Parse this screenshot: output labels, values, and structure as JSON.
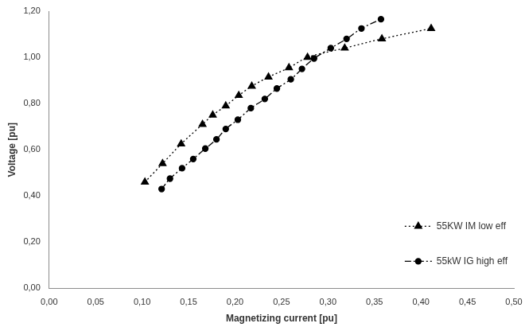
{
  "chart_data": {
    "type": "line",
    "x_label": "Magnetizing current [pu]",
    "y_label": "Voltage [pu]",
    "xlim": [
      0,
      0.5
    ],
    "xticks": [
      {
        "value": 0,
        "label": "0,00"
      },
      {
        "value": 0.05,
        "label": "0,05"
      },
      {
        "value": 0.1,
        "label": "0,10"
      },
      {
        "value": 0.15,
        "label": "0,15"
      },
      {
        "value": 0.2,
        "label": "0,20"
      },
      {
        "value": 0.25,
        "label": "0,25"
      },
      {
        "value": 0.3,
        "label": "0,30"
      },
      {
        "value": 0.35,
        "label": "0,35"
      },
      {
        "value": 0.4,
        "label": "0,40"
      },
      {
        "value": 0.45,
        "label": "0,45"
      },
      {
        "value": 0.5,
        "label": "0,50"
      }
    ],
    "ylim": [
      0,
      1.2
    ],
    "yticks": [
      {
        "value": 0,
        "label": "0,00"
      },
      {
        "value": 0.2,
        "label": "0,20"
      },
      {
        "value": 0.4,
        "label": "0,40"
      },
      {
        "value": 0.6,
        "label": "0,60"
      },
      {
        "value": 0.8,
        "label": "0,80"
      },
      {
        "value": 1.0,
        "label": "1,00"
      },
      {
        "value": 1.2,
        "label": "1,20"
      }
    ],
    "grid": false,
    "legend": "lower right",
    "series": [
      {
        "name": "55KW IM low eff",
        "color": "#000000",
        "marker": "triangle",
        "line_style": "dotted",
        "x": [
          0.103,
          0.122,
          0.142,
          0.165,
          0.176,
          0.19,
          0.204,
          0.218,
          0.236,
          0.258,
          0.278,
          0.318,
          0.358,
          0.411
        ],
        "values": [
          0.46,
          0.54,
          0.625,
          0.71,
          0.75,
          0.79,
          0.835,
          0.875,
          0.915,
          0.955,
          1.0,
          1.04,
          1.08,
          1.125
        ]
      },
      {
        "name": "55kW IG high eff",
        "color": "#000000",
        "marker": "circle",
        "line_style": "dashdot",
        "x": [
          0.121,
          0.13,
          0.143,
          0.155,
          0.168,
          0.18,
          0.19,
          0.203,
          0.217,
          0.232,
          0.245,
          0.26,
          0.272,
          0.285,
          0.303,
          0.32,
          0.336,
          0.357
        ],
        "values": [
          0.43,
          0.475,
          0.52,
          0.56,
          0.605,
          0.645,
          0.69,
          0.73,
          0.78,
          0.82,
          0.865,
          0.905,
          0.95,
          0.995,
          1.04,
          1.08,
          1.125,
          1.165
        ]
      }
    ]
  }
}
